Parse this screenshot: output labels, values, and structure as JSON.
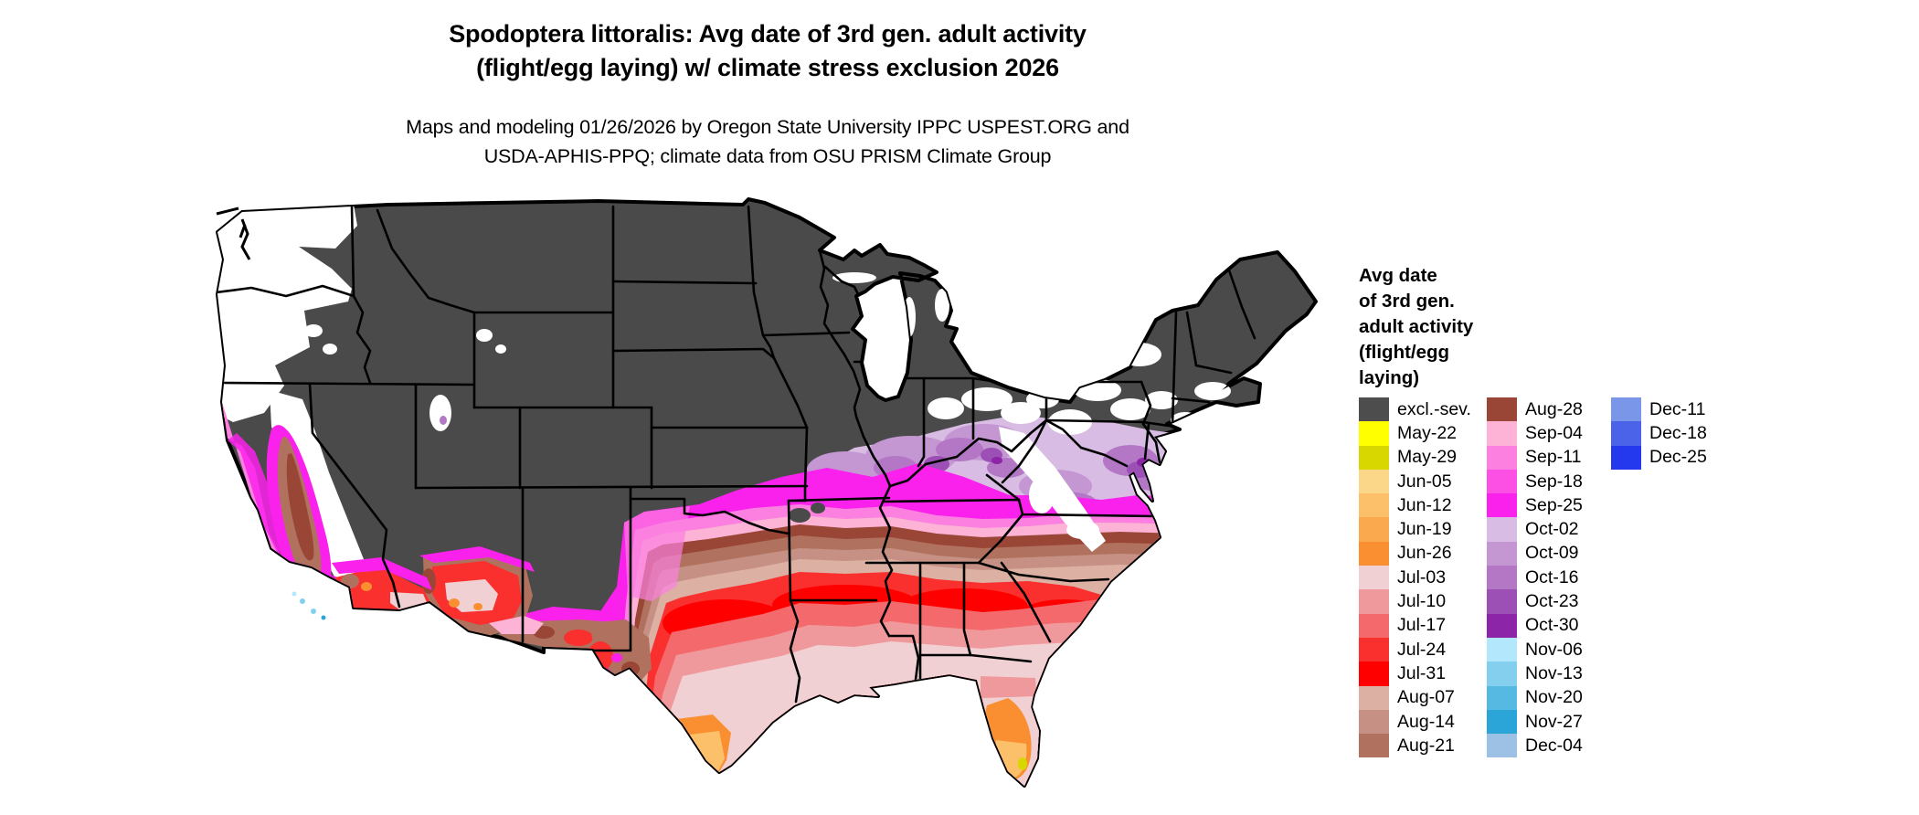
{
  "title": {
    "line1": "Spodoptera littoralis: Avg date of 3rd gen. adult activity",
    "line2": "(flight/egg laying) w/ climate stress exclusion 2026"
  },
  "subtitle": {
    "line1": "Maps and modeling 01/26/2026 by Oregon State University IPPC USPEST.ORG and",
    "line2": "USDA-APHIS-PPQ; climate data from OSU PRISM Climate Group"
  },
  "map": {
    "name": "us-3rd-gen-adult-activity-choropleth",
    "region": "Continental United States",
    "background_color": "#ffffff",
    "excluded_color": "#4a4a4a",
    "state_border_color": "#000000"
  },
  "legend": {
    "title": "Avg date\nof 3rd gen.\nadult activity\n(flight/egg\nlaying)",
    "columns": [
      [
        {
          "label": "excl.-sev.",
          "color": "#4d4d4d"
        },
        {
          "label": "May-22",
          "color": "#ffff00"
        },
        {
          "label": "May-29",
          "color": "#d8d800"
        },
        {
          "label": "Jun-05",
          "color": "#fbd78a"
        },
        {
          "label": "Jun-12",
          "color": "#fdc06a"
        },
        {
          "label": "Jun-19",
          "color": "#fba94e"
        },
        {
          "label": "Jun-26",
          "color": "#f98f31"
        },
        {
          "label": "Jul-03",
          "color": "#f0d0d2"
        },
        {
          "label": "Jul-10",
          "color": "#f0999c"
        },
        {
          "label": "Jul-17",
          "color": "#f4696b"
        },
        {
          "label": "Jul-24",
          "color": "#f9302e"
        },
        {
          "label": "Jul-31",
          "color": "#ff0000"
        },
        {
          "label": "Aug-07",
          "color": "#dcb1a4"
        },
        {
          "label": "Aug-14",
          "color": "#c69184"
        },
        {
          "label": "Aug-21",
          "color": "#b0725f"
        }
      ],
      [
        {
          "label": "Aug-28",
          "color": "#9a4636"
        },
        {
          "label": "Sep-04",
          "color": "#fdb3d5"
        },
        {
          "label": "Sep-11",
          "color": "#fb80df"
        },
        {
          "label": "Sep-18",
          "color": "#fc4fe4"
        },
        {
          "label": "Sep-25",
          "color": "#fb21ec"
        },
        {
          "label": "Oct-02",
          "color": "#d8bce4"
        },
        {
          "label": "Oct-09",
          "color": "#c497d3"
        },
        {
          "label": "Oct-16",
          "color": "#b377c5"
        },
        {
          "label": "Oct-23",
          "color": "#9c50b5"
        },
        {
          "label": "Oct-30",
          "color": "#8d25a8"
        },
        {
          "label": "Nov-06",
          "color": "#b3e7fb"
        },
        {
          "label": "Nov-13",
          "color": "#85cfee"
        },
        {
          "label": "Nov-20",
          "color": "#55b9e2"
        },
        {
          "label": "Nov-27",
          "color": "#2ba5d8"
        },
        {
          "label": "Dec-04",
          "color": "#9cc1e4"
        }
      ],
      [
        {
          "label": "Dec-11",
          "color": "#7a96e8"
        },
        {
          "label": "Dec-18",
          "color": "#4a63e8"
        },
        {
          "label": "Dec-25",
          "color": "#2438ee"
        }
      ]
    ]
  }
}
